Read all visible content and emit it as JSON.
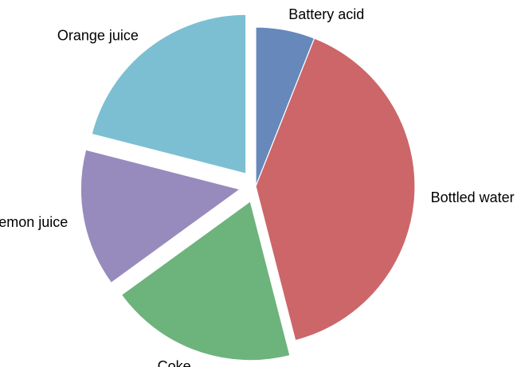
{
  "chart_data": {
    "type": "pie",
    "labels": [
      "Battery acid",
      "Bottled water",
      "Coke",
      "Lemon juice",
      "Orange juice"
    ],
    "values": [
      6,
      40,
      19,
      14,
      21
    ],
    "unit": "%",
    "colors": [
      "#6688bb",
      "#cc6669",
      "#6db37c",
      "#978bbd",
      "#7cbfd2"
    ],
    "exploded": [
      0,
      0,
      1,
      1,
      1
    ],
    "start_angle_deg": 90,
    "direction": "clockwise",
    "legend": "none",
    "title": ""
  }
}
